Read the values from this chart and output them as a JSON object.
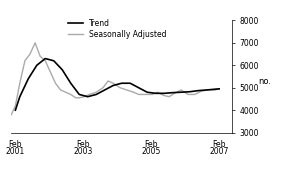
{
  "ylabel": "no.",
  "xlim_start": 2001.0,
  "xlim_end": 2007.5,
  "ylim": [
    3000,
    8000
  ],
  "yticks": [
    3000,
    4000,
    5000,
    6000,
    7000,
    8000
  ],
  "xtick_positions": [
    2001.12,
    2003.12,
    2005.12,
    2007.12
  ],
  "xtick_labels_top": [
    "Feb",
    "Feb",
    "Feb",
    "Feb"
  ],
  "xtick_labels_bot": [
    "2001",
    "2003",
    "2005",
    "2007"
  ],
  "trend_color": "#000000",
  "sa_color": "#aaaaaa",
  "trend_linewidth": 1.2,
  "sa_linewidth": 1.0,
  "legend_trend": "Trend",
  "legend_sa": "Seasonally Adjusted",
  "background_color": "#ffffff",
  "trend_x": [
    2001.12,
    2001.25,
    2001.5,
    2001.75,
    2002.0,
    2002.25,
    2002.5,
    2002.75,
    2003.0,
    2003.25,
    2003.5,
    2003.75,
    2004.0,
    2004.25,
    2004.5,
    2004.75,
    2005.0,
    2005.25,
    2005.5,
    2005.75,
    2006.0,
    2006.25,
    2006.5,
    2006.75,
    2007.12
  ],
  "trend_y": [
    4000,
    4600,
    5400,
    6000,
    6300,
    6200,
    5800,
    5200,
    4700,
    4600,
    4700,
    4900,
    5100,
    5200,
    5200,
    5000,
    4800,
    4750,
    4750,
    4780,
    4800,
    4820,
    4870,
    4900,
    4950
  ],
  "sa_x": [
    2001.0,
    2001.12,
    2001.25,
    2001.4,
    2001.55,
    2001.7,
    2001.85,
    2002.0,
    2002.15,
    2002.3,
    2002.45,
    2002.6,
    2002.75,
    2002.9,
    2003.0,
    2003.15,
    2003.3,
    2003.5,
    2003.7,
    2003.85,
    2004.0,
    2004.2,
    2004.4,
    2004.6,
    2004.75,
    2005.0,
    2005.15,
    2005.3,
    2005.5,
    2005.65,
    2005.8,
    2006.0,
    2006.2,
    2006.4,
    2006.6,
    2006.8,
    2007.0,
    2007.12
  ],
  "sa_y": [
    3800,
    4200,
    5200,
    6200,
    6500,
    7000,
    6400,
    6200,
    5700,
    5200,
    4900,
    4800,
    4700,
    4550,
    4550,
    4600,
    4700,
    4800,
    5000,
    5300,
    5200,
    5000,
    4900,
    4800,
    4700,
    4700,
    4700,
    4800,
    4650,
    4600,
    4750,
    4900,
    4700,
    4700,
    4850,
    4900,
    4900,
    4950
  ]
}
